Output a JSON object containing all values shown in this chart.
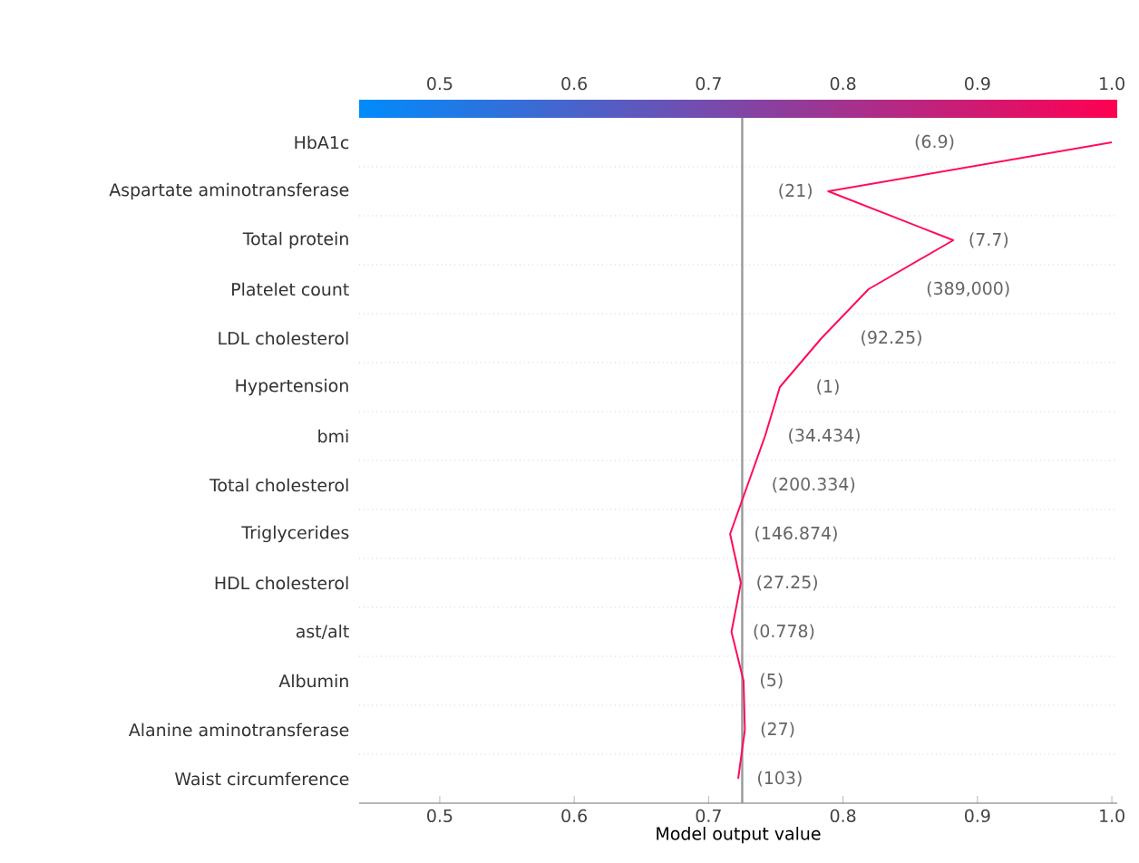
{
  "chart_data": {
    "type": "line",
    "orientation": "horizontal",
    "xlabel": "Model output value",
    "categories": [
      "HbA1c",
      "Aspartate aminotransferase",
      "Total protein",
      "Platelet count",
      "LDL cholesterol",
      "Hypertension",
      "bmi",
      "Total cholesterol",
      "Triglycerides",
      "HDL cholesterol",
      "ast/alt",
      "Albumin",
      "Alanine aminotransferase",
      "Waist circumference"
    ],
    "series": [
      {
        "color": "#ff0d57",
        "values": [
          1.0,
          0.789,
          0.882,
          0.819,
          0.784,
          0.753,
          0.742,
          0.729,
          0.716,
          0.724,
          0.717,
          0.726,
          0.727,
          0.722
        ]
      }
    ],
    "xlim": [
      0.44,
      1.004
    ],
    "xticks": [
      0.5,
      0.6,
      0.7,
      0.8,
      0.9,
      {
        "value": 1.0,
        "label": "1.0"
      }
    ],
    "clim": [
      0.44,
      1.004
    ],
    "cticks": [
      0.5,
      0.6,
      0.7,
      0.8,
      0.9,
      {
        "value": 1.0,
        "label": "1.0"
      }
    ],
    "grid": "y",
    "marker": "none",
    "line_style": "solid",
    "ref_lines": [
      {
        "axis": "x",
        "value": 0.725,
        "color": "#999999"
      }
    ],
    "annotations": [
      "(6.9)",
      "(21)",
      "(7.7)",
      "(389,000)",
      "(92.25)",
      "(1)",
      "(34.434)",
      "(200.334)",
      "(146.874)",
      "(27.25)",
      "(0.778)",
      "(5)",
      "(27)",
      "(103)"
    ]
  }
}
